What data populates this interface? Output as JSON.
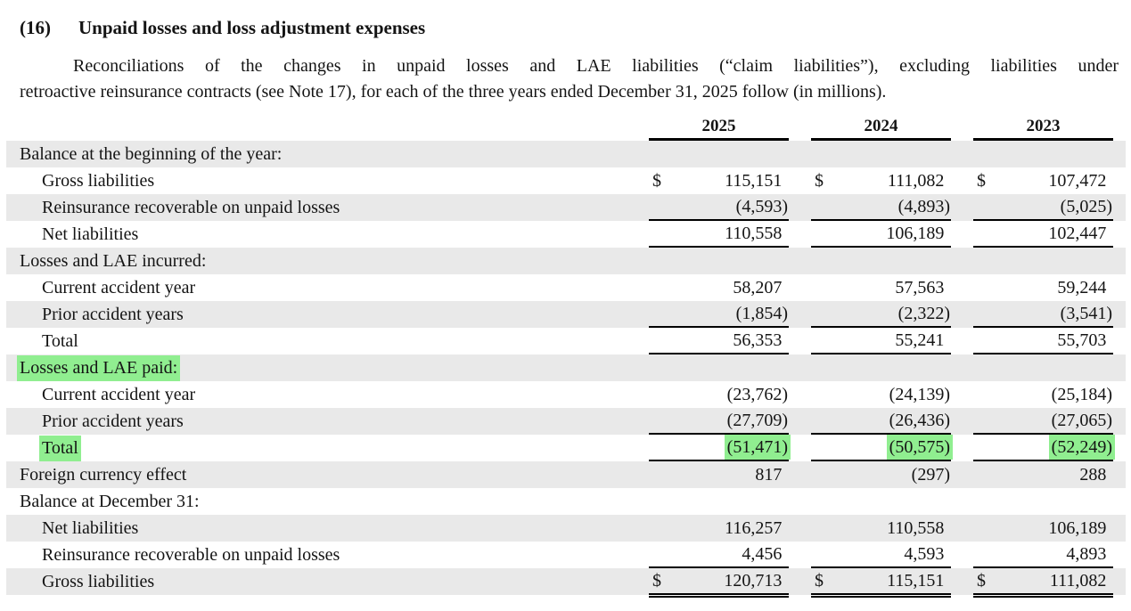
{
  "page": {
    "note_number": "(16)",
    "title": "Unpaid losses and loss adjustment expenses",
    "intro_lines": [
      "Reconciliations of the changes in unpaid losses and LAE liabilities (“claim liabilities”), excluding liabilities under",
      "retroactive reinsurance contracts (see Note 17), for each of the three years ended December 31, 2025 follow (in millions)."
    ]
  },
  "colors": {
    "row_shade": "#e9e9e9",
    "highlight_green": "#90ee90",
    "text": "#141414",
    "rule": "#000000"
  },
  "table": {
    "columns": [
      "2025",
      "2024",
      "2023"
    ],
    "rows": [
      {
        "label": "Balance at the beginning of the year:",
        "indent": 0,
        "shaded": true,
        "dollar": false,
        "label_highlight": false,
        "value_highlight": false,
        "rule": "none",
        "values": [
          "",
          "",
          ""
        ]
      },
      {
        "label": "Gross liabilities",
        "indent": 1,
        "shaded": false,
        "dollar": true,
        "label_highlight": false,
        "value_highlight": false,
        "rule": "none",
        "values": [
          "115,151",
          "111,082",
          "107,472"
        ]
      },
      {
        "label": "Reinsurance recoverable on unpaid losses",
        "indent": 1,
        "shaded": true,
        "dollar": false,
        "label_highlight": false,
        "value_highlight": false,
        "rule": "single",
        "values": [
          "(4,593)",
          "(4,893)",
          "(5,025)"
        ]
      },
      {
        "label": "Net liabilities",
        "indent": 1,
        "shaded": false,
        "dollar": false,
        "label_highlight": false,
        "value_highlight": false,
        "rule": "single",
        "values": [
          "110,558",
          "106,189",
          "102,447"
        ]
      },
      {
        "label": "Losses and LAE incurred:",
        "indent": 0,
        "shaded": true,
        "dollar": false,
        "label_highlight": false,
        "value_highlight": false,
        "rule": "none",
        "values": [
          "",
          "",
          ""
        ]
      },
      {
        "label": "Current accident year",
        "indent": 1,
        "shaded": false,
        "dollar": false,
        "label_highlight": false,
        "value_highlight": false,
        "rule": "none",
        "values": [
          "58,207",
          "57,563",
          "59,244"
        ]
      },
      {
        "label": "Prior accident years",
        "indent": 1,
        "shaded": true,
        "dollar": false,
        "label_highlight": false,
        "value_highlight": false,
        "rule": "single",
        "values": [
          "(1,854)",
          "(2,322)",
          "(3,541)"
        ]
      },
      {
        "label": "Total",
        "indent": 1,
        "shaded": false,
        "dollar": false,
        "label_highlight": false,
        "value_highlight": false,
        "rule": "single",
        "values": [
          "56,353",
          "55,241",
          "55,703"
        ]
      },
      {
        "label": "Losses and LAE paid:",
        "indent": 0,
        "shaded": true,
        "dollar": false,
        "label_highlight": true,
        "value_highlight": false,
        "rule": "none",
        "values": [
          "",
          "",
          ""
        ]
      },
      {
        "label": "Current accident year",
        "indent": 1,
        "shaded": false,
        "dollar": false,
        "label_highlight": false,
        "value_highlight": false,
        "rule": "none",
        "values": [
          "(23,762)",
          "(24,139)",
          "(25,184)"
        ]
      },
      {
        "label": "Prior accident years",
        "indent": 1,
        "shaded": true,
        "dollar": false,
        "label_highlight": false,
        "value_highlight": false,
        "rule": "single",
        "values": [
          "(27,709)",
          "(26,436)",
          "(27,065)"
        ]
      },
      {
        "label": "Total",
        "indent": 1,
        "shaded": false,
        "dollar": false,
        "label_highlight": true,
        "value_highlight": true,
        "rule": "single",
        "values": [
          "(51,471)",
          "(50,575)",
          "(52,249)"
        ]
      },
      {
        "label": "Foreign currency effect",
        "indent": 0,
        "shaded": true,
        "dollar": false,
        "label_highlight": false,
        "value_highlight": false,
        "rule": "none",
        "values": [
          "817",
          "(297)",
          "288"
        ]
      },
      {
        "label": "Balance at December 31:",
        "indent": 0,
        "shaded": false,
        "dollar": false,
        "label_highlight": false,
        "value_highlight": false,
        "rule": "none",
        "values": [
          "",
          "",
          ""
        ]
      },
      {
        "label": "Net liabilities",
        "indent": 1,
        "shaded": true,
        "dollar": false,
        "label_highlight": false,
        "value_highlight": false,
        "rule": "none",
        "values": [
          "116,257",
          "110,558",
          "106,189"
        ]
      },
      {
        "label": "Reinsurance recoverable on unpaid losses",
        "indent": 1,
        "shaded": false,
        "dollar": false,
        "label_highlight": false,
        "value_highlight": false,
        "rule": "single",
        "values": [
          "4,456",
          "4,593",
          "4,893"
        ]
      },
      {
        "label": "Gross liabilities",
        "indent": 1,
        "shaded": true,
        "dollar": true,
        "label_highlight": false,
        "value_highlight": false,
        "rule": "double",
        "values": [
          "120,713",
          "115,151",
          "111,082"
        ]
      }
    ]
  }
}
